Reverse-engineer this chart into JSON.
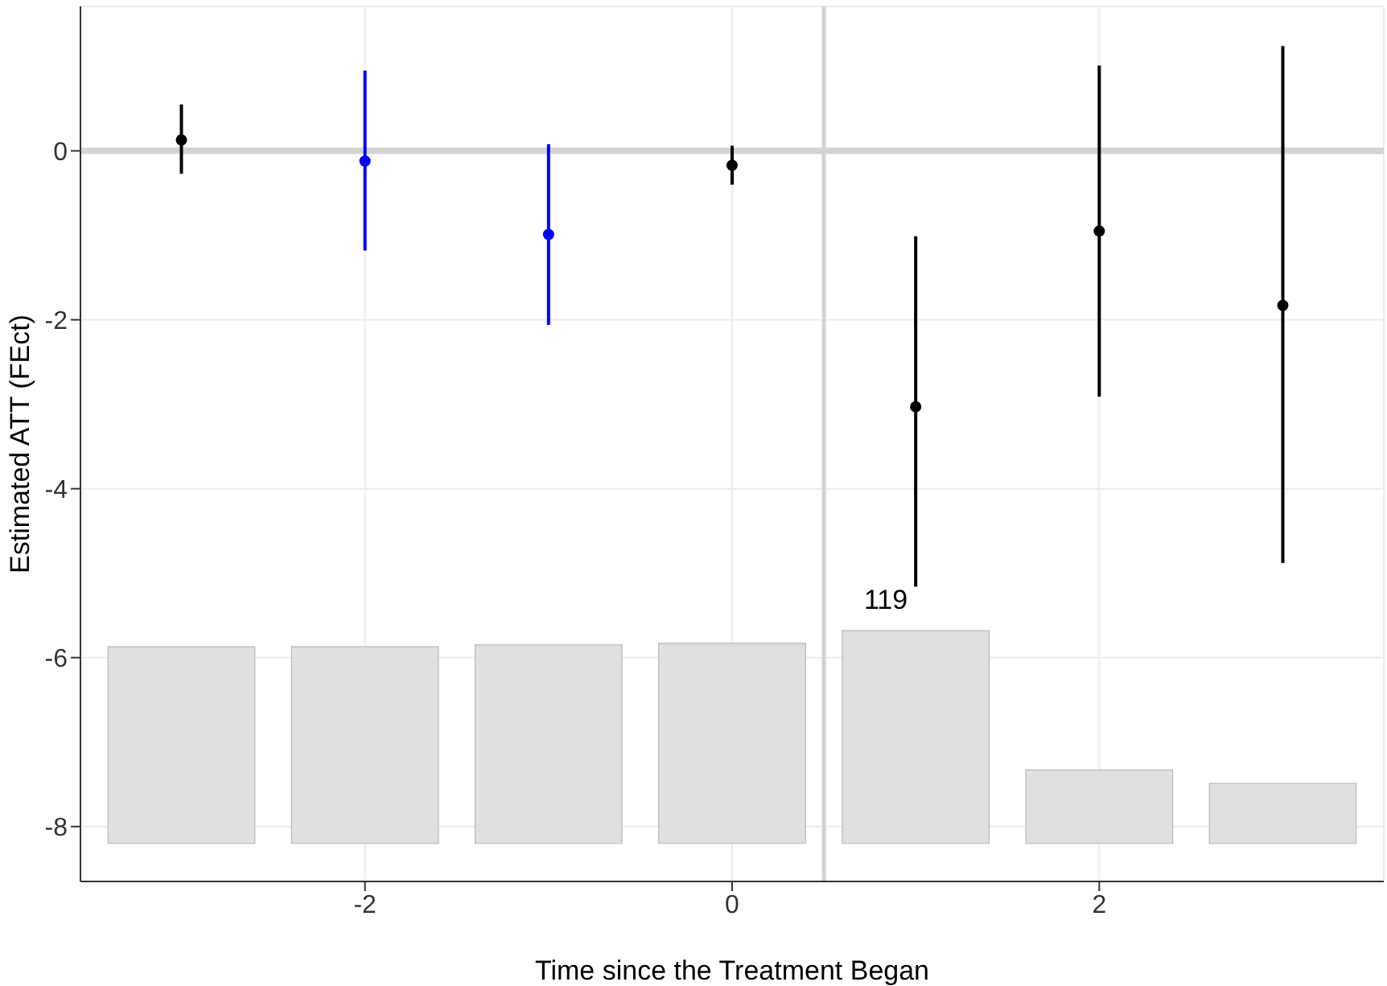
{
  "chart_data": {
    "type": "scatter",
    "xlabel": "Time since the Treatment Began",
    "ylabel": "Estimated ATT (FEct)",
    "xlim": [
      -3.55,
      3.55
    ],
    "xticks": [
      -2,
      0,
      2
    ],
    "ylim": [
      -8.65,
      1.71
    ],
    "yticks": [
      -8,
      -6,
      -4,
      -2,
      0
    ],
    "grid": true,
    "marker": "circle",
    "series": [
      {
        "type": "bar",
        "color": "#e0e0e0",
        "x": [
          -3,
          -2,
          -1,
          0,
          1,
          2,
          3
        ],
        "base": [
          -8.2,
          -8.2,
          -8.2,
          -8.2,
          -8.2,
          -8.2,
          -8.2
        ],
        "values": [
          2.33,
          2.33,
          2.35,
          2.37,
          2.52,
          0.87,
          0.71
        ]
      },
      {
        "color": "#000000",
        "x": [
          -3,
          0,
          1,
          2,
          3
        ],
        "values": [
          0.13,
          -0.17,
          -3.03,
          -0.95,
          -1.83
        ],
        "errors": [
          [
            -0.27,
            0.55
          ],
          [
            -0.4,
            0.06
          ],
          [
            -5.16,
            -1.01
          ],
          [
            -2.91,
            1.01
          ],
          [
            -4.88,
            1.24
          ]
        ]
      },
      {
        "color": "#0000ff",
        "x": [
          -2,
          -1
        ],
        "values": [
          -0.12,
          -0.99
        ],
        "errors": [
          [
            -1.18,
            0.95
          ],
          [
            -2.06,
            0.08
          ]
        ]
      }
    ],
    "ref_lines": [
      {
        "axis": "y",
        "value": 0,
        "color": "#d3d3d3"
      },
      {
        "axis": "x",
        "value": 0.5,
        "color": "#d3d3d3"
      }
    ],
    "annotations": [
      {
        "text": "119",
        "x": 1,
        "y": -5.1
      }
    ]
  }
}
